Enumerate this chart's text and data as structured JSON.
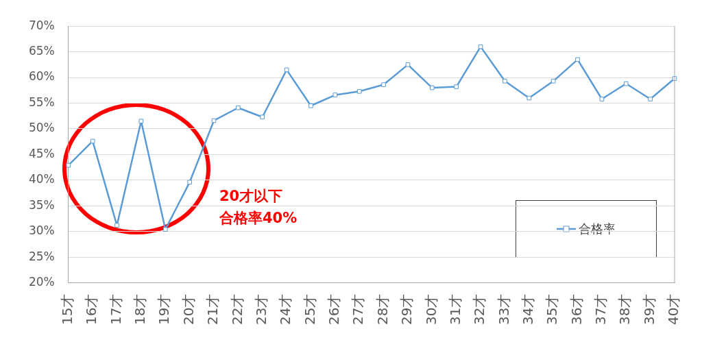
{
  "chart_data": {
    "type": "line",
    "categories": [
      "15才",
      "16才",
      "17才",
      "18才",
      "19才",
      "20才",
      "21才",
      "22才",
      "23才",
      "24才",
      "25才",
      "26才",
      "27才",
      "28才",
      "29才",
      "30才",
      "31才",
      "32才",
      "33才",
      "34才",
      "35才",
      "36才",
      "37才",
      "38才",
      "39才",
      "40才"
    ],
    "series": [
      {
        "name": "合格率",
        "color": "#5b9bd5",
        "values": [
          42.9,
          47.6,
          31.2,
          51.5,
          30.4,
          39.6,
          51.6,
          54.1,
          52.3,
          61.5,
          54.5,
          56.6,
          57.3,
          58.6,
          62.5,
          58.0,
          58.2,
          66.0,
          59.3,
          56.0,
          59.3,
          63.5,
          55.8,
          58.8,
          55.8,
          59.8
        ]
      }
    ],
    "ylim": [
      20,
      70
    ],
    "yticks": [
      {
        "value": 20,
        "label": "20%"
      },
      {
        "value": 25,
        "label": "25%"
      },
      {
        "value": 30,
        "label": "30%"
      },
      {
        "value": 35,
        "label": "35%"
      },
      {
        "value": 40,
        "label": "40%"
      },
      {
        "value": 45,
        "label": "45%"
      },
      {
        "value": 50,
        "label": "50%"
      },
      {
        "value": 55,
        "label": "55%"
      },
      {
        "value": 60,
        "label": "60%"
      },
      {
        "value": 65,
        "label": "65%"
      },
      {
        "value": 70,
        "label": "70%"
      }
    ],
    "annotations": [
      "20才以下",
      "合格率40%"
    ],
    "grid": "y",
    "legend": "bottom right",
    "marker": "square",
    "line_style": "solid"
  }
}
